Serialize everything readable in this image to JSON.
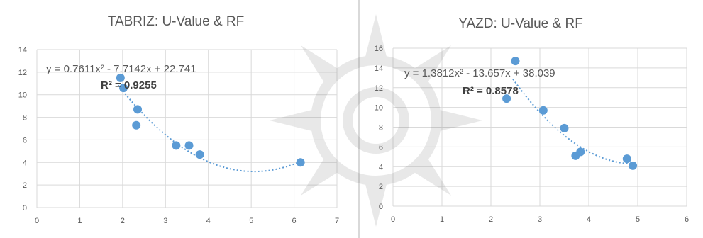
{
  "chart_data": [
    {
      "type": "scatter",
      "title": "TABRIZ: U-Value & RF",
      "xlim": [
        0,
        7
      ],
      "ylim": [
        0,
        14
      ],
      "xticks": [
        "0",
        "1",
        "2",
        "3",
        "4",
        "5",
        "6",
        "7"
      ],
      "yticks": [
        "0",
        "2",
        "4",
        "6",
        "8",
        "10",
        "12",
        "14"
      ],
      "grid": true,
      "points": [
        {
          "x": 1.95,
          "y": 11.5
        },
        {
          "x": 2.02,
          "y": 10.6
        },
        {
          "x": 2.35,
          "y": 8.7
        },
        {
          "x": 2.32,
          "y": 7.3
        },
        {
          "x": 3.25,
          "y": 5.5
        },
        {
          "x": 3.55,
          "y": 5.5
        },
        {
          "x": 3.8,
          "y": 4.7
        },
        {
          "x": 6.15,
          "y": 4.0
        }
      ],
      "trendline": {
        "type": "polynomial",
        "a": 0.7611,
        "b": -7.7142,
        "c": 22.741,
        "x_from": 1.9,
        "x_to": 6.2
      },
      "equation_label": "y = 0.7611x² - 7.7142x + 22.741",
      "r2_label": "R² = 0.9255",
      "point_color": "#5b9bd5"
    },
    {
      "type": "scatter",
      "title": "YAZD: U-Value & RF",
      "xlim": [
        0,
        6
      ],
      "ylim": [
        0,
        16
      ],
      "xticks": [
        "0",
        "1",
        "2",
        "3",
        "4",
        "5",
        "6"
      ],
      "yticks": [
        "0",
        "2",
        "4",
        "6",
        "8",
        "10",
        "12",
        "14",
        "16"
      ],
      "grid": true,
      "points": [
        {
          "x": 2.5,
          "y": 14.7
        },
        {
          "x": 2.32,
          "y": 10.9
        },
        {
          "x": 3.07,
          "y": 9.7
        },
        {
          "x": 3.5,
          "y": 7.9
        },
        {
          "x": 3.73,
          "y": 5.1
        },
        {
          "x": 3.83,
          "y": 5.5
        },
        {
          "x": 4.78,
          "y": 4.8
        },
        {
          "x": 4.9,
          "y": 4.1
        }
      ],
      "trendline": {
        "type": "polynomial",
        "a": 1.3812,
        "b": -13.657,
        "c": 38.039,
        "x_from": 2.45,
        "x_to": 4.95
      },
      "equation_label": "y = 1.3812x² - 13.657x + 38.039",
      "r2_label": "R² = 0.8578",
      "point_color": "#5b9bd5"
    }
  ]
}
